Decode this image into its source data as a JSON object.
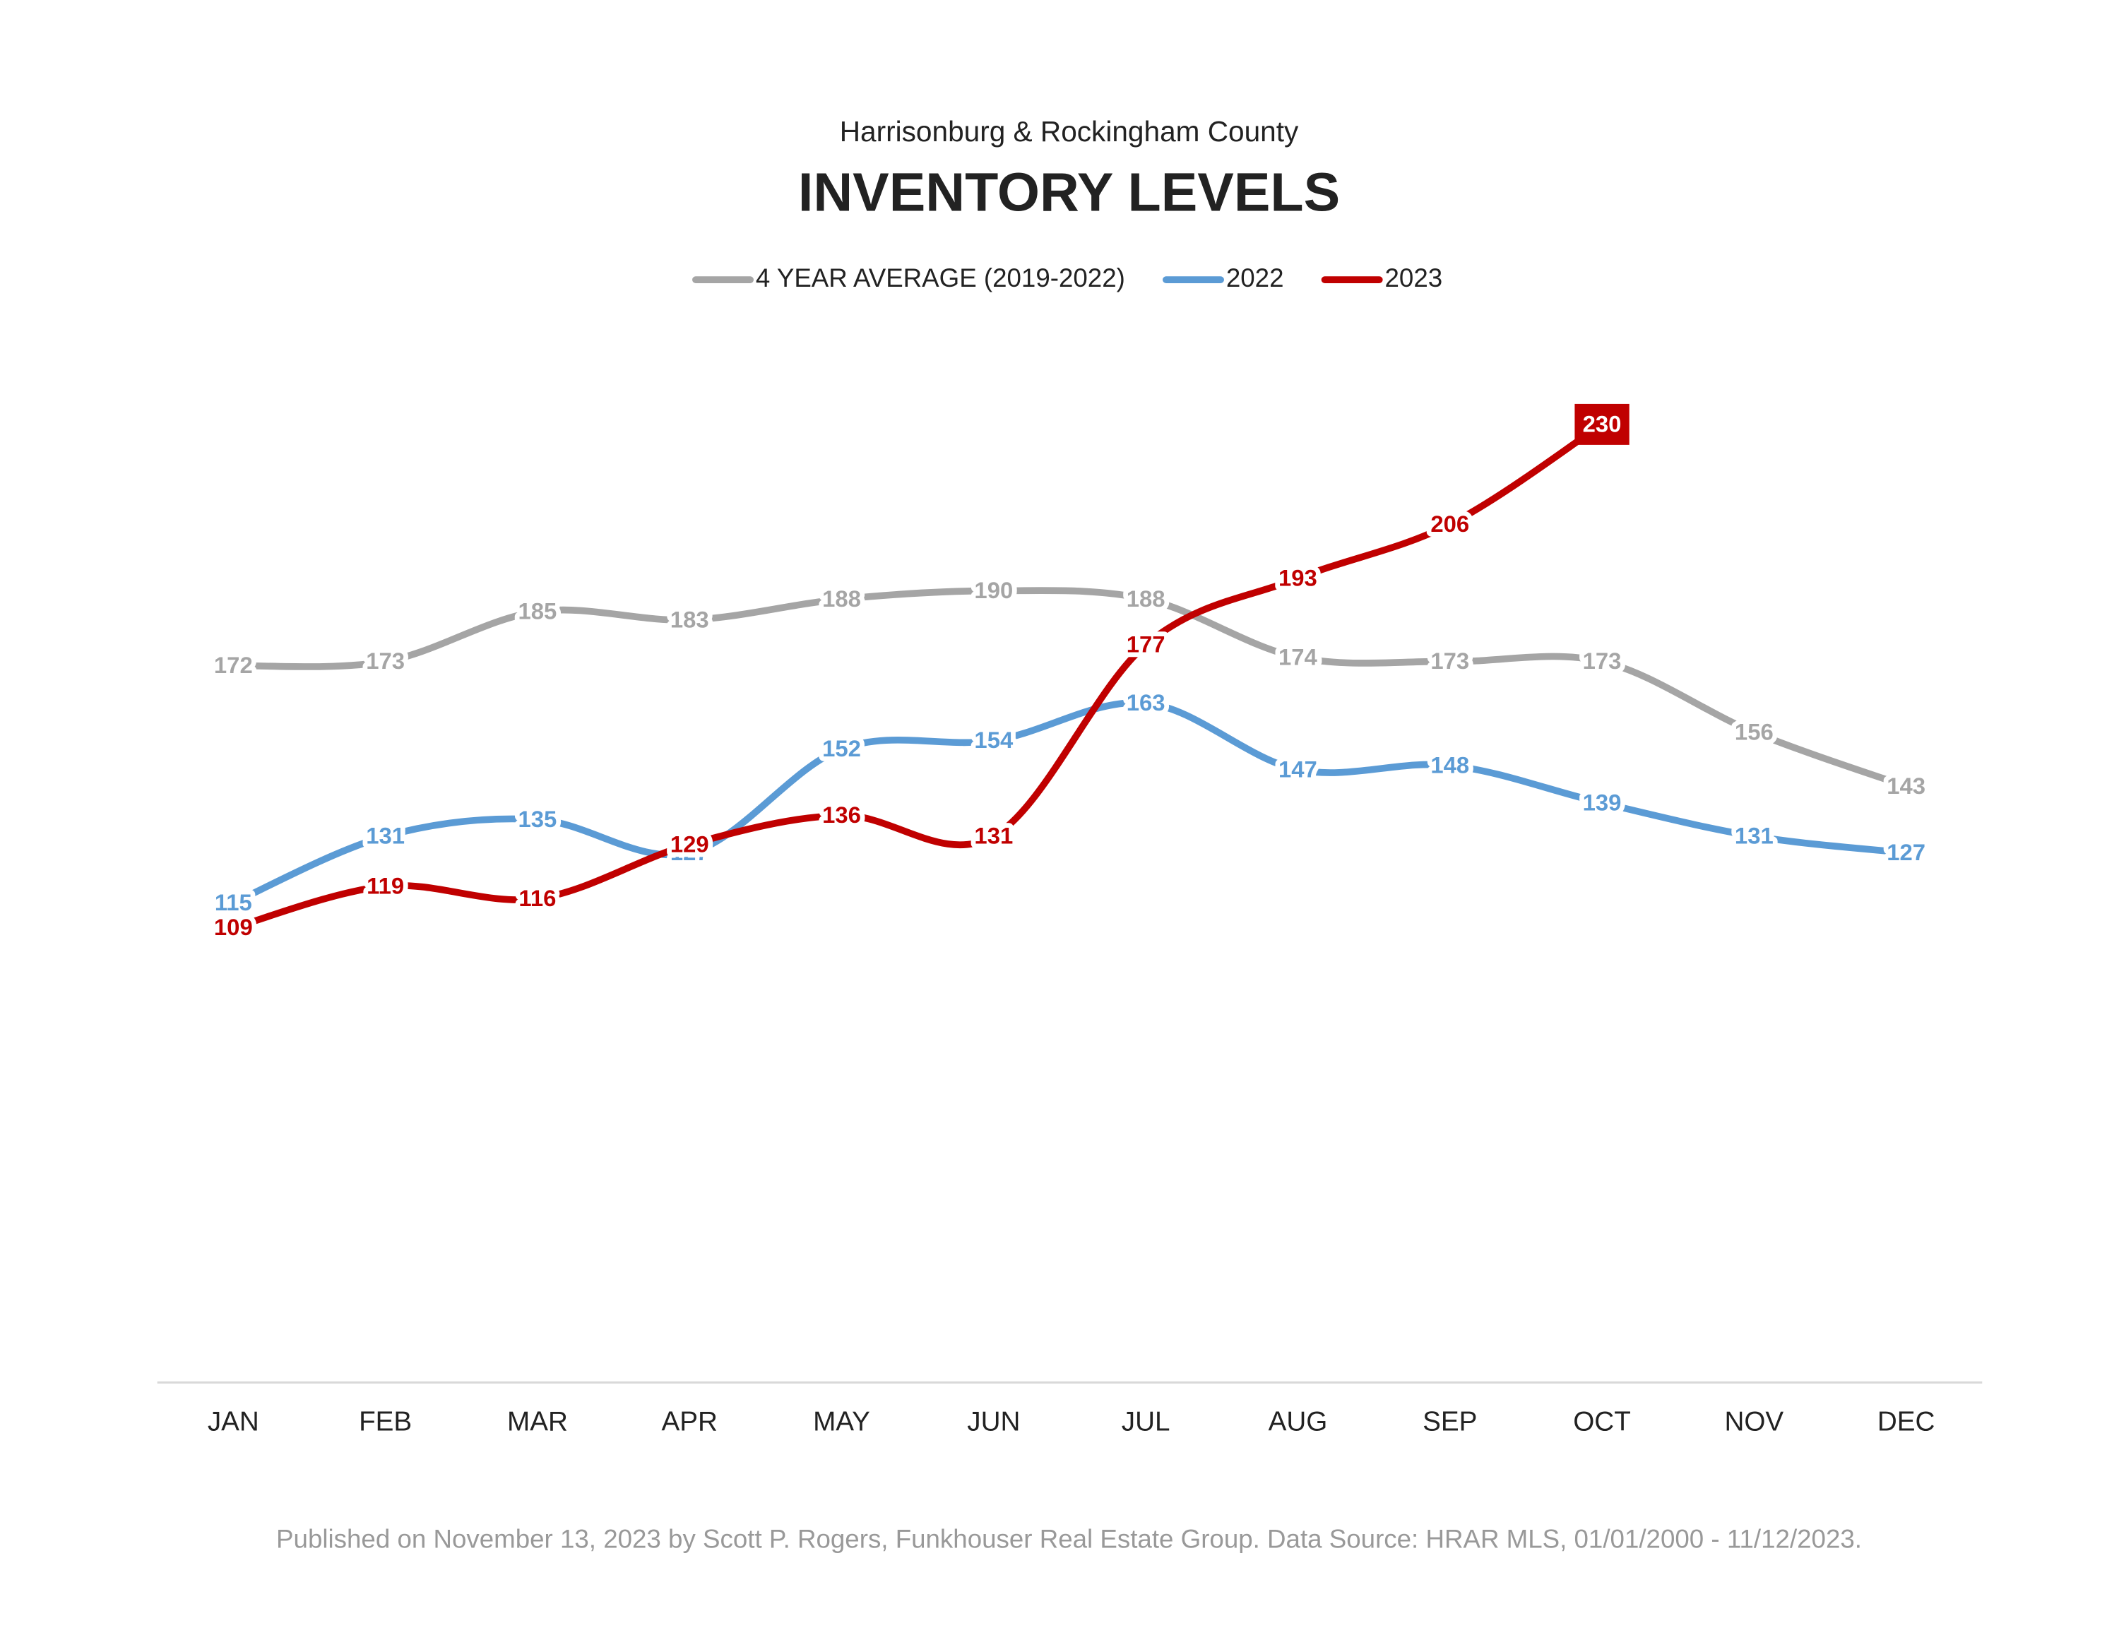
{
  "chart_data": {
    "type": "line",
    "subtitle": "Harrisonburg & Rockingham County",
    "title": "INVENTORY LEVELS",
    "categories": [
      "JAN",
      "FEB",
      "MAR",
      "APR",
      "MAY",
      "JUN",
      "JUL",
      "AUG",
      "SEP",
      "OCT",
      "NOV",
      "DEC"
    ],
    "series": [
      {
        "name": "4 YEAR AVERAGE (2019-2022)",
        "color": "#a5a5a5",
        "values": [
          172,
          173,
          185,
          183,
          188,
          190,
          188,
          174,
          173,
          173,
          156,
          143
        ]
      },
      {
        "name": "2022",
        "color": "#5b9bd5",
        "values": [
          115,
          131,
          135,
          127,
          152,
          154,
          163,
          147,
          148,
          139,
          131,
          127
        ]
      },
      {
        "name": "2023",
        "color": "#c00000",
        "values": [
          109,
          119,
          116,
          129,
          136,
          131,
          177,
          193,
          206,
          230,
          null,
          null
        ]
      }
    ],
    "ylim": [
      0,
      250
    ],
    "legend": "top",
    "footnote": "Published on November 13, 2023 by Scott P. Rogers, Funkhouser Real Estate Group. Data Source: HRAR MLS, 01/01/2000 - 11/12/2023."
  }
}
